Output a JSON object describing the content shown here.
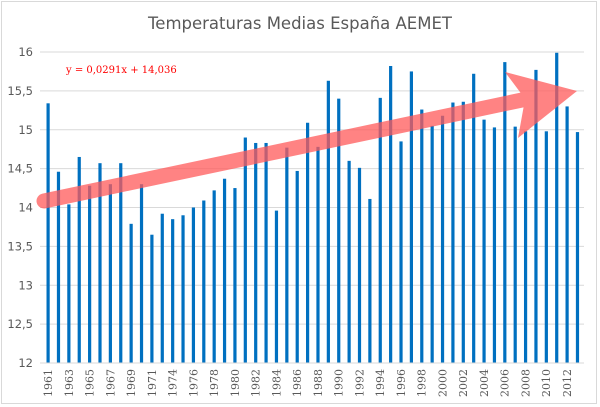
{
  "chart_data": {
    "type": "bar",
    "title": "Temperaturas Medias España AEMET",
    "xlabel": "",
    "ylabel": "",
    "ylim": [
      12,
      16
    ],
    "yticks": [
      12,
      12.5,
      13,
      13.5,
      14,
      14.5,
      15,
      15.5,
      16
    ],
    "ytick_labels": [
      "12",
      "12,5",
      "13",
      "13,5",
      "14",
      "14,5",
      "15",
      "15,5",
      "16"
    ],
    "grid": true,
    "legend": "none",
    "categories": [
      "1961",
      "1962",
      "1963",
      "1964",
      "1965",
      "1966",
      "1967",
      "1968",
      "1969",
      "1970",
      "1971",
      "1973",
      "1974",
      "1975",
      "1976",
      "1977",
      "1978",
      "1979",
      "1980",
      "1981",
      "1982",
      "1983",
      "1984",
      "1985",
      "1986",
      "1987",
      "1988",
      "1989",
      "1990",
      "1991",
      "1992",
      "1993",
      "1994",
      "1995",
      "1996",
      "1997",
      "1998",
      "1999",
      "2000",
      "2001",
      "2002",
      "2003",
      "2004",
      "2005",
      "2006",
      "2007",
      "2008",
      "2009",
      "2010",
      "2011",
      "2012",
      "2013"
    ],
    "xtick_labels": [
      "1961",
      "1963",
      "1965",
      "1967",
      "1969",
      "1971",
      "1974",
      "1976",
      "1978",
      "1980",
      "1982",
      "1984",
      "1986",
      "1988",
      "1990",
      "1992",
      "1994",
      "1996",
      "1998",
      "2000",
      "2002",
      "2004",
      "2006",
      "2008",
      "2010",
      "2012"
    ],
    "values": [
      15.34,
      14.46,
      14.04,
      14.65,
      14.28,
      14.57,
      14.3,
      14.57,
      13.79,
      14.3,
      13.65,
      13.92,
      13.85,
      13.9,
      14.0,
      14.09,
      14.22,
      14.37,
      14.25,
      14.9,
      14.83,
      14.83,
      13.96,
      14.77,
      14.47,
      15.09,
      14.78,
      15.63,
      15.4,
      14.6,
      14.51,
      14.11,
      15.41,
      15.82,
      14.85,
      15.75,
      15.26,
      15.05,
      15.18,
      15.35,
      15.36,
      15.72,
      15.13,
      15.03,
      15.87,
      15.04,
      14.98,
      15.77,
      14.98,
      15.99,
      15.3,
      14.97
    ],
    "series_color": "#0070c0",
    "annotations": [
      {
        "type": "text",
        "text": "y = 0,0291x + 14,036",
        "color": "#ff0000",
        "position": "top-left"
      },
      {
        "type": "arrow",
        "description": "trend arrow, rising left to right",
        "color": "#ff6b6b"
      }
    ]
  }
}
